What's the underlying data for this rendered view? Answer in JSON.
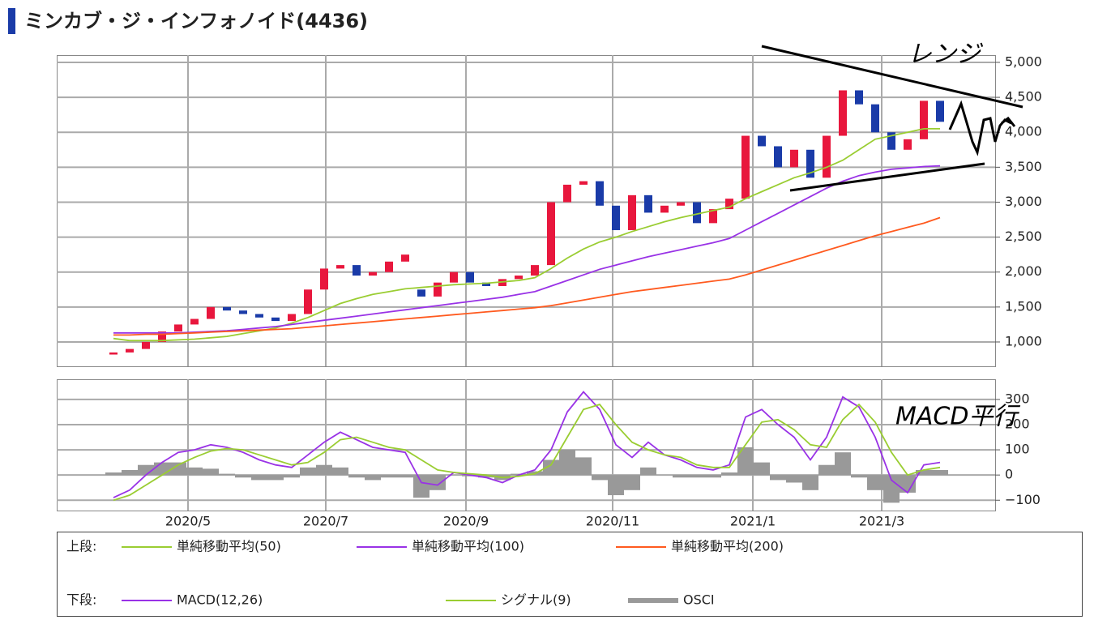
{
  "chart_data": [
    {
      "type": "candlestick",
      "title": "ミンカブ・ジ・インフォノイド(4436)",
      "legend_label": "上段:",
      "annotations": [
        "レンジ"
      ],
      "up_color": "#e8173d",
      "down_color": "#1a3ba8",
      "xlim": [
        -3.5,
        54.4
      ],
      "ylim": [
        652,
        5104
      ],
      "yticks": [
        {
          "value": 1000,
          "label": "1,000"
        },
        {
          "value": 1500,
          "label": "1,500"
        },
        {
          "value": 2000,
          "label": "2,000"
        },
        {
          "value": 2500,
          "label": "2,500"
        },
        {
          "value": 3000,
          "label": "3,000"
        },
        {
          "value": 3500,
          "label": "3,500"
        },
        {
          "value": 4000,
          "label": "4,000"
        },
        {
          "value": 4500,
          "label": "4,500"
        },
        {
          "value": 5000,
          "label": "5,000"
        }
      ],
      "open": [
        820,
        850,
        900,
        1000,
        1150,
        1250,
        1330,
        1500,
        1450,
        1400,
        1350,
        1300,
        1400,
        1750,
        2050,
        2100,
        1950,
        2000,
        2150,
        1750,
        1650,
        1850,
        2000,
        1850,
        1800,
        1900,
        1950,
        2100,
        3000,
        3250,
        3300,
        2950,
        2600,
        3100,
        2850,
        2950,
        3000,
        2700,
        2900,
        3050,
        3950,
        3800,
        3500,
        3750,
        3350,
        3950,
        4600,
        4400,
        4000,
        3750,
        3900,
        4450
      ],
      "close": [
        850,
        900,
        1000,
        1150,
        1250,
        1330,
        1500,
        1450,
        1400,
        1350,
        1300,
        1400,
        1750,
        2050,
        2100,
        1950,
        2000,
        2150,
        2250,
        1650,
        1850,
        2000,
        1850,
        1800,
        1900,
        1950,
        2100,
        3000,
        3250,
        3300,
        2950,
        2600,
        3100,
        2850,
        2950,
        3000,
        2700,
        2900,
        3050,
        3950,
        3800,
        3500,
        3750,
        3350,
        3950,
        4600,
        4400,
        4000,
        3750,
        3900,
        4450,
        4150
      ],
      "series": [
        {
          "name": "単純移動平均(50)",
          "color": "#9acd32",
          "values": [
            1050,
            1020,
            1020,
            1020,
            1030,
            1040,
            1060,
            1080,
            1120,
            1160,
            1200,
            1270,
            1350,
            1450,
            1550,
            1620,
            1680,
            1720,
            1760,
            1780,
            1800,
            1820,
            1830,
            1840,
            1860,
            1880,
            1920,
            2050,
            2200,
            2330,
            2430,
            2500,
            2580,
            2650,
            2720,
            2780,
            2830,
            2880,
            2930,
            3050,
            3150,
            3250,
            3350,
            3420,
            3500,
            3600,
            3750,
            3900,
            3950,
            4000,
            4050,
            4050
          ]
        },
        {
          "name": "単純移動平均(100)",
          "color": "#9932e6",
          "values": [
            1130,
            1130,
            1130,
            1130,
            1130,
            1140,
            1150,
            1160,
            1180,
            1200,
            1220,
            1250,
            1280,
            1310,
            1340,
            1370,
            1400,
            1430,
            1460,
            1490,
            1520,
            1550,
            1580,
            1610,
            1640,
            1680,
            1720,
            1800,
            1880,
            1960,
            2040,
            2100,
            2160,
            2220,
            2270,
            2320,
            2370,
            2420,
            2480,
            2600,
            2720,
            2840,
            2960,
            3080,
            3200,
            3300,
            3380,
            3430,
            3470,
            3490,
            3510,
            3520
          ]
        },
        {
          "name": "単純移動平均(200)",
          "color": "#ff5a1f",
          "values": [
            1100,
            1100,
            1110,
            1110,
            1120,
            1130,
            1140,
            1150,
            1160,
            1170,
            1180,
            1190,
            1210,
            1230,
            1250,
            1270,
            1290,
            1310,
            1330,
            1350,
            1370,
            1390,
            1410,
            1430,
            1450,
            1470,
            1490,
            1520,
            1560,
            1600,
            1640,
            1680,
            1720,
            1750,
            1780,
            1810,
            1840,
            1870,
            1900,
            1960,
            2030,
            2100,
            2170,
            2240,
            2310,
            2380,
            2450,
            2520,
            2580,
            2640,
            2700,
            2780
          ]
        }
      ]
    },
    {
      "type": "macd",
      "legend_label": "下段:",
      "annotations": [
        "MACD平行"
      ],
      "xlim": [
        -3.5,
        54.4
      ],
      "ylim": [
        -141,
        380
      ],
      "xticks": [
        {
          "value": 4.6,
          "label": "2020/5"
        },
        {
          "value": 13.1,
          "label": "2020/7"
        },
        {
          "value": 21.75,
          "label": "2020/9"
        },
        {
          "value": 30.8,
          "label": "2020/11"
        },
        {
          "value": 39.45,
          "label": "2021/1"
        },
        {
          "value": 47.4,
          "label": "2021/3"
        }
      ],
      "yticks": [
        {
          "value": -100,
          "label": "−100"
        },
        0,
        100,
        200,
        300
      ],
      "series": [
        {
          "name": "MACD(12,26)",
          "color": "#9932e6",
          "values": [
            -90,
            -60,
            0,
            50,
            90,
            100,
            120,
            110,
            90,
            60,
            40,
            30,
            80,
            130,
            170,
            140,
            110,
            100,
            90,
            -30,
            -40,
            10,
            0,
            -10,
            -30,
            0,
            20,
            100,
            250,
            330,
            260,
            120,
            70,
            130,
            80,
            60,
            30,
            20,
            40,
            230,
            260,
            200,
            150,
            60,
            150,
            310,
            270,
            150,
            -20,
            -70,
            40,
            50
          ]
        },
        {
          "name": "シグナル(9)",
          "color": "#9acd32",
          "values": [
            -100,
            -80,
            -40,
            0,
            40,
            70,
            95,
            105,
            100,
            80,
            60,
            40,
            50,
            90,
            140,
            150,
            130,
            110,
            100,
            60,
            20,
            10,
            5,
            0,
            -10,
            -5,
            5,
            40,
            150,
            260,
            280,
            200,
            130,
            100,
            80,
            70,
            40,
            30,
            30,
            120,
            210,
            220,
            180,
            120,
            110,
            220,
            280,
            210,
            90,
            0,
            20,
            30
          ]
        }
      ],
      "bars": {
        "name": "OSCI",
        "color": "#999999",
        "values": [
          10,
          20,
          40,
          50,
          50,
          30,
          25,
          5,
          -10,
          -20,
          -20,
          -10,
          30,
          40,
          30,
          -10,
          -20,
          -10,
          -10,
          -90,
          -60,
          0,
          -5,
          -10,
          -20,
          5,
          15,
          60,
          100,
          70,
          -20,
          -80,
          -60,
          30,
          0,
          -10,
          -10,
          -10,
          10,
          110,
          50,
          -20,
          -30,
          -60,
          40,
          90,
          -10,
          -60,
          -110,
          -70,
          20,
          20
        ]
      }
    }
  ]
}
